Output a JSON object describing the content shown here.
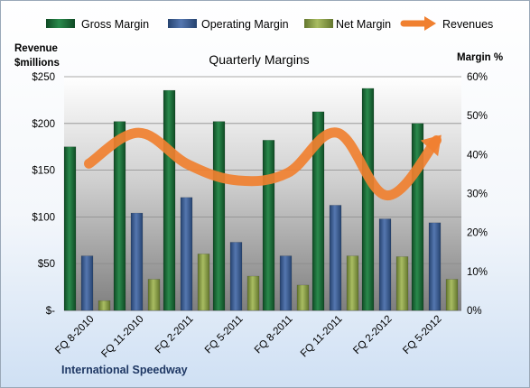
{
  "chart_data": {
    "type": "bar",
    "title": "Quarterly Margins",
    "left_axis_title": [
      "Revenue",
      "$millions"
    ],
    "right_axis_title": "Margin %",
    "footer": "International Speedway",
    "categories": [
      "FQ 8-2010",
      "FQ 11-2010",
      "FQ 2-2011",
      "FQ 5-2011",
      "FQ 8-2011",
      "FQ 11-2011",
      "FQ 2-2012",
      "FQ 5-2012"
    ],
    "left_ticks": [
      "$-",
      "$50",
      "$100",
      "$150",
      "$200",
      "$250"
    ],
    "right_ticks": [
      "0%",
      "10%",
      "20%",
      "30%",
      "40%",
      "50%",
      "60%"
    ],
    "ylim_left": [
      0,
      250
    ],
    "ylim_right": [
      0,
      60
    ],
    "legend_position": "top",
    "series": [
      {
        "name": "Gross Margin",
        "axis": "right",
        "color": "#1e6b3a",
        "values": [
          42,
          48.5,
          56.5,
          48.5,
          43.7,
          51,
          57,
          48
        ]
      },
      {
        "name": "Operating Margin",
        "axis": "right",
        "color": "#3a5f96",
        "values": [
          14,
          25,
          29,
          17.5,
          14,
          27,
          23.5,
          22.5
        ]
      },
      {
        "name": "Net Margin",
        "axis": "right",
        "color": "#8ba046",
        "values": [
          2.5,
          8,
          14.5,
          8.8,
          6.5,
          14,
          13.8,
          8
        ]
      },
      {
        "name": "Revenues",
        "axis": "left",
        "color": "#f08030",
        "type": "line",
        "values": [
          157,
          190,
          156,
          139,
          147,
          190,
          123,
          182
        ]
      }
    ]
  }
}
